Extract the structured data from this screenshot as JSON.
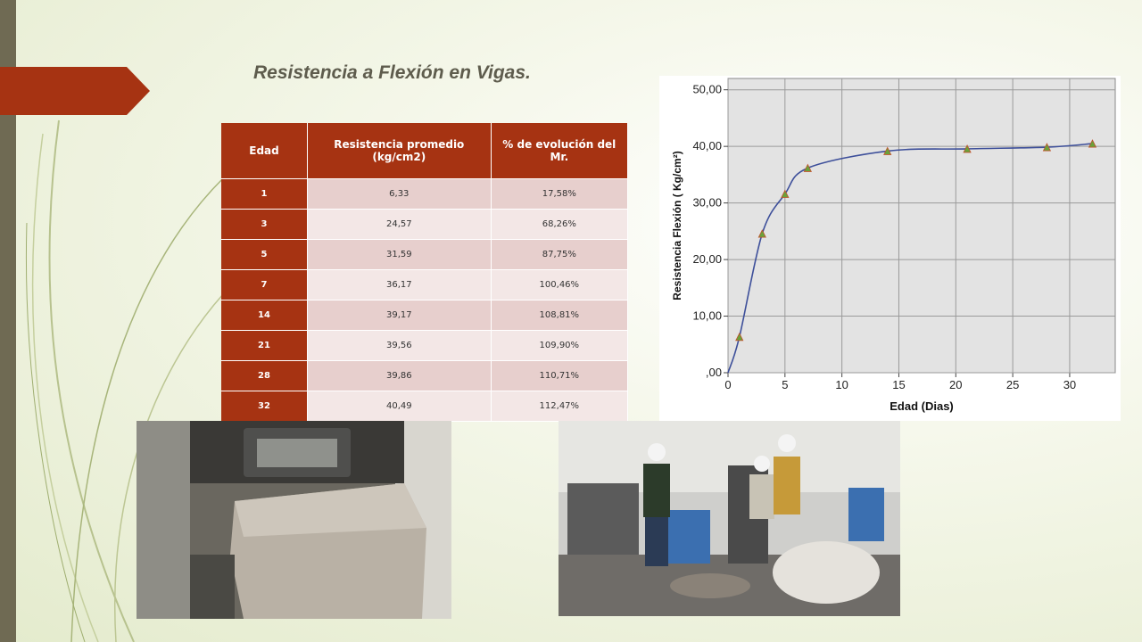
{
  "slide": {
    "title": "Resistencia a Flexión en Vigas."
  },
  "colors": {
    "accent": "#a63312",
    "title_text": "#5e5c4d",
    "row_dark": "#e7cfcd",
    "row_light": "#f3e7e6",
    "line": "#3d4f9a",
    "marker": "#6aa23a"
  },
  "table": {
    "headers": [
      "Edad",
      "Resistencia promedio (kg/cm2)",
      "% de evolución del Mr."
    ],
    "rows": [
      {
        "edad": "1",
        "resistencia": "6,33",
        "evolucion": "17,58%"
      },
      {
        "edad": "3",
        "resistencia": "24,57",
        "evolucion": "68,26%"
      },
      {
        "edad": "5",
        "resistencia": "31,59",
        "evolucion": "87,75%"
      },
      {
        "edad": "7",
        "resistencia": "36,17",
        "evolucion": "100,46%"
      },
      {
        "edad": "14",
        "resistencia": "39,17",
        "evolucion": "108,81%"
      },
      {
        "edad": "21",
        "resistencia": "39,56",
        "evolucion": "109,90%"
      },
      {
        "edad": "28",
        "resistencia": "39,86",
        "evolucion": "110,71%"
      },
      {
        "edad": "32",
        "resistencia": "40,49",
        "evolucion": "112,47%"
      }
    ]
  },
  "chart_data": {
    "type": "line",
    "xlabel": "Edad (Dias)",
    "ylabel": "Resistencia Flexión ( Kg/cm²)",
    "x": [
      0,
      1,
      3,
      5,
      7,
      14,
      21,
      28,
      32
    ],
    "y": [
      0,
      6.33,
      24.57,
      31.59,
      36.17,
      39.17,
      39.56,
      39.86,
      40.49
    ],
    "xlim": [
      0,
      34
    ],
    "ylim": [
      0,
      52
    ],
    "xticks": [
      0,
      5,
      10,
      15,
      20,
      25,
      30
    ],
    "xtick_labels": [
      "0",
      "5",
      "10",
      "15",
      "20",
      "25",
      "30"
    ],
    "yticks": [
      0,
      10,
      20,
      30,
      40,
      50
    ],
    "ytick_labels": [
      ",00",
      "10,00",
      "20,00",
      "30,00",
      "40,00",
      "50,00"
    ],
    "grid": true,
    "markers": "triangle",
    "smooth": true
  },
  "photos": {
    "left": "concrete-beam-flexure-test",
    "right": "lab-team-photo"
  }
}
